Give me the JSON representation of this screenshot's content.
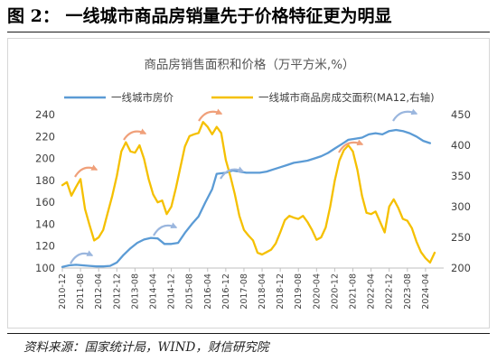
{
  "figure": {
    "title": "图 2：  一线城市商品房销量先于价格特征更为明显",
    "source": "资料来源：国家统计局，WIND，财信研究院"
  },
  "chart_data": {
    "type": "line",
    "title": "商品房销售面积和价格（万平方米,%）",
    "xlabel": "",
    "ylabel": "",
    "y_left_lim": [
      100,
      240
    ],
    "y_left_ticks": [
      100,
      120,
      140,
      160,
      180,
      200,
      220,
      240
    ],
    "y_right_lim": [
      200,
      450
    ],
    "y_right_ticks": [
      200,
      250,
      300,
      350,
      400,
      450
    ],
    "x_range": [
      "2010-12",
      "2024-12"
    ],
    "x_tick_labels": [
      "2010-12",
      "2011-08",
      "2012-04",
      "2012-12",
      "2013-08",
      "2014-04",
      "2014-12",
      "2015-08",
      "2016-04",
      "2016-12",
      "2017-08",
      "2018-04",
      "2018-12",
      "2019-08",
      "2020-04",
      "2020-12",
      "2021-08",
      "2022-04",
      "2022-12",
      "2023-08",
      "2024-04"
    ],
    "legend_position": "top",
    "grid": false,
    "series": [
      {
        "name": "一线城市房价",
        "axis": "left",
        "color": "#5b9bd5",
        "points": [
          [
            "2010-12",
            101
          ],
          [
            "2011-03",
            102.5
          ],
          [
            "2011-06",
            103
          ],
          [
            "2011-09",
            102.5
          ],
          [
            "2011-12",
            102
          ],
          [
            "2012-03",
            101.5
          ],
          [
            "2012-06",
            101.5
          ],
          [
            "2012-09",
            102
          ],
          [
            "2012-12",
            105
          ],
          [
            "2013-03",
            112
          ],
          [
            "2013-06",
            118
          ],
          [
            "2013-09",
            123
          ],
          [
            "2013-12",
            126
          ],
          [
            "2014-03",
            127.5
          ],
          [
            "2014-06",
            127
          ],
          [
            "2014-09",
            122
          ],
          [
            "2014-12",
            122
          ],
          [
            "2015-03",
            123
          ],
          [
            "2015-06",
            132
          ],
          [
            "2015-09",
            140
          ],
          [
            "2015-12",
            147
          ],
          [
            "2016-03",
            160
          ],
          [
            "2016-06",
            172
          ],
          [
            "2016-08",
            186
          ],
          [
            "2016-12",
            187
          ],
          [
            "2017-03",
            189
          ],
          [
            "2017-06",
            188
          ],
          [
            "2017-09",
            187
          ],
          [
            "2017-12",
            187
          ],
          [
            "2018-03",
            187
          ],
          [
            "2018-06",
            188
          ],
          [
            "2018-09",
            190
          ],
          [
            "2018-12",
            192
          ],
          [
            "2019-03",
            194
          ],
          [
            "2019-06",
            196
          ],
          [
            "2019-09",
            197
          ],
          [
            "2019-12",
            198
          ],
          [
            "2020-03",
            200
          ],
          [
            "2020-06",
            202
          ],
          [
            "2020-09",
            205
          ],
          [
            "2020-12",
            209
          ],
          [
            "2021-03",
            213
          ],
          [
            "2021-06",
            217
          ],
          [
            "2021-09",
            218
          ],
          [
            "2021-12",
            219
          ],
          [
            "2022-03",
            222
          ],
          [
            "2022-06",
            223
          ],
          [
            "2022-09",
            222
          ],
          [
            "2022-12",
            225
          ],
          [
            "2023-03",
            226
          ],
          [
            "2023-06",
            225
          ],
          [
            "2023-09",
            223
          ],
          [
            "2023-12",
            220
          ],
          [
            "2024-03",
            216
          ],
          [
            "2024-06",
            214
          ]
        ]
      },
      {
        "name": "一线城市商品房成交面积(MA12,右轴)",
        "axis": "right",
        "color": "#f5c000",
        "points": [
          [
            "2010-12",
            335
          ],
          [
            "2011-02",
            340
          ],
          [
            "2011-04",
            318
          ],
          [
            "2011-06",
            332
          ],
          [
            "2011-08",
            345
          ],
          [
            "2011-10",
            296
          ],
          [
            "2011-12",
            270
          ],
          [
            "2012-02",
            245
          ],
          [
            "2012-04",
            250
          ],
          [
            "2012-06",
            262
          ],
          [
            "2012-08",
            290
          ],
          [
            "2012-10",
            318
          ],
          [
            "2012-12",
            350
          ],
          [
            "2013-02",
            390
          ],
          [
            "2013-04",
            405
          ],
          [
            "2013-06",
            390
          ],
          [
            "2013-08",
            388
          ],
          [
            "2013-10",
            400
          ],
          [
            "2013-12",
            378
          ],
          [
            "2014-02",
            345
          ],
          [
            "2014-04",
            320
          ],
          [
            "2014-06",
            307
          ],
          [
            "2014-08",
            310
          ],
          [
            "2014-10",
            288
          ],
          [
            "2014-12",
            300
          ],
          [
            "2015-02",
            330
          ],
          [
            "2015-04",
            364
          ],
          [
            "2015-06",
            398
          ],
          [
            "2015-08",
            415
          ],
          [
            "2015-10",
            418
          ],
          [
            "2015-12",
            420
          ],
          [
            "2016-02",
            438
          ],
          [
            "2016-04",
            430
          ],
          [
            "2016-06",
            418
          ],
          [
            "2016-08",
            430
          ],
          [
            "2016-10",
            420
          ],
          [
            "2016-12",
            376
          ],
          [
            "2017-02",
            350
          ],
          [
            "2017-04",
            320
          ],
          [
            "2017-06",
            285
          ],
          [
            "2017-08",
            262
          ],
          [
            "2017-10",
            253
          ],
          [
            "2017-12",
            245
          ],
          [
            "2018-02",
            225
          ],
          [
            "2018-04",
            222
          ],
          [
            "2018-06",
            226
          ],
          [
            "2018-08",
            230
          ],
          [
            "2018-10",
            240
          ],
          [
            "2018-12",
            258
          ],
          [
            "2019-02",
            278
          ],
          [
            "2019-04",
            285
          ],
          [
            "2019-06",
            282
          ],
          [
            "2019-08",
            280
          ],
          [
            "2019-10",
            285
          ],
          [
            "2019-12",
            275
          ],
          [
            "2020-02",
            262
          ],
          [
            "2020-04",
            246
          ],
          [
            "2020-06",
            250
          ],
          [
            "2020-08",
            266
          ],
          [
            "2020-10",
            300
          ],
          [
            "2020-12",
            342
          ],
          [
            "2021-02",
            375
          ],
          [
            "2021-04",
            392
          ],
          [
            "2021-06",
            400
          ],
          [
            "2021-08",
            390
          ],
          [
            "2021-10",
            360
          ],
          [
            "2021-12",
            318
          ],
          [
            "2022-02",
            290
          ],
          [
            "2022-04",
            288
          ],
          [
            "2022-06",
            292
          ],
          [
            "2022-08",
            275
          ],
          [
            "2022-10",
            258
          ],
          [
            "2022-12",
            300
          ],
          [
            "2023-02",
            312
          ],
          [
            "2023-04",
            298
          ],
          [
            "2023-06",
            280
          ],
          [
            "2023-08",
            277
          ],
          [
            "2023-10",
            265
          ],
          [
            "2023-12",
            243
          ],
          [
            "2024-02",
            226
          ],
          [
            "2024-04",
            216
          ],
          [
            "2024-06",
            209
          ],
          [
            "2024-08",
            225
          ]
        ]
      }
    ]
  }
}
